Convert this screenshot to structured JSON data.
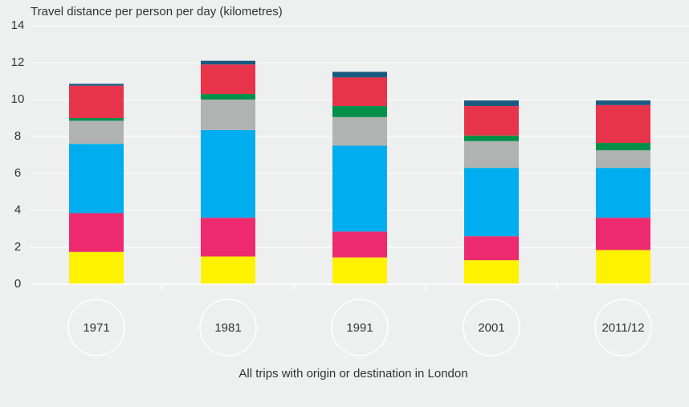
{
  "chart_data": {
    "type": "stacked_bar",
    "title": "Travel distance per person per day (kilometres)",
    "caption": "All trips with origin or destination in London",
    "categories": [
      "1971",
      "1981",
      "1991",
      "2001",
      "2011/12"
    ],
    "series": [
      {
        "color": "#fff200",
        "values": [
          1.75,
          1.5,
          1.45,
          1.3,
          1.85
        ]
      },
      {
        "color": "#ee2a6e",
        "values": [
          2.1,
          2.1,
          1.4,
          1.3,
          1.75
        ]
      },
      {
        "color": "#00aeef",
        "values": [
          3.75,
          4.75,
          4.65,
          3.7,
          2.7
        ]
      },
      {
        "color": "#b1b3b3",
        "values": [
          1.25,
          1.65,
          1.55,
          1.45,
          0.95
        ]
      },
      {
        "color": "#00904a",
        "values": [
          0.15,
          0.3,
          0.6,
          0.3,
          0.4
        ]
      },
      {
        "color": "#e8344a",
        "values": [
          1.75,
          1.6,
          1.55,
          1.6,
          2.05
        ]
      },
      {
        "color": "#1a5a80",
        "values": [
          0.1,
          0.2,
          0.3,
          0.3,
          0.25
        ]
      }
    ],
    "ylim": [
      0,
      14
    ],
    "yticks": [
      0,
      2,
      4,
      6,
      8,
      10,
      12,
      14
    ],
    "grid": true
  }
}
